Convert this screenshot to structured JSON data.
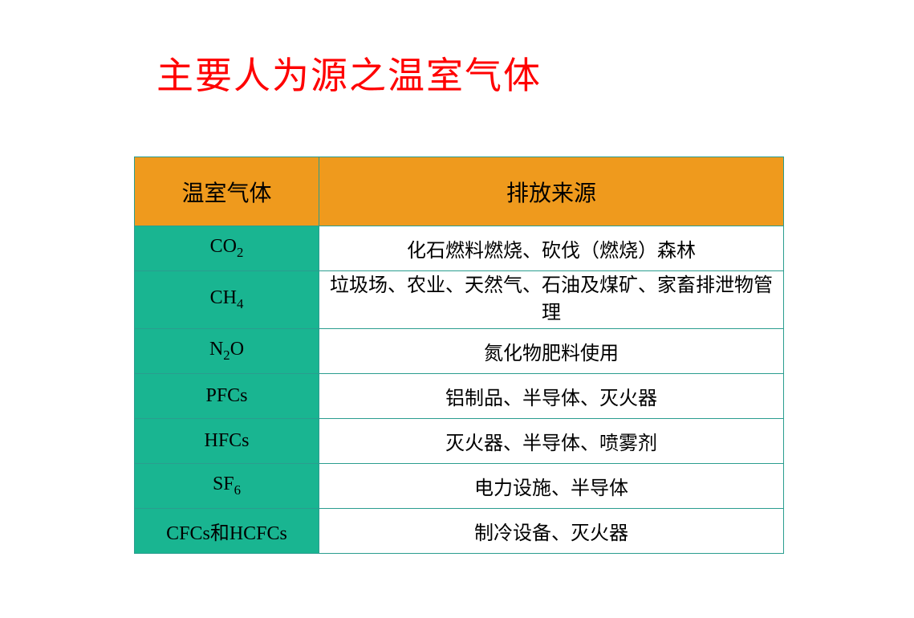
{
  "title": "主要人为源之温室气体",
  "table": {
    "header_bg_color": "#ef9a1d",
    "gas_cell_bg_color": "#19b591",
    "source_cell_bg_color": "#ffffff",
    "border_color": "#2a9d8f",
    "title_color": "#ff0000",
    "columns": [
      "温室气体",
      "排放来源"
    ],
    "rows": [
      {
        "gas_html": "CO<sub>2</sub>",
        "source": "化石燃料燃烧、砍伐（燃烧）森林"
      },
      {
        "gas_html": "CH<sub>4</sub>",
        "source": "垃圾场、农业、天然气、石油及煤矿、家畜排泄物管理",
        "tall": true
      },
      {
        "gas_html": "N<sub>2</sub>O",
        "source": "氮化物肥料使用"
      },
      {
        "gas_html": "PFCs",
        "source": "铝制品、半导体、灭火器"
      },
      {
        "gas_html": "HFCs",
        "source": "灭火器、半导体、喷雾剂"
      },
      {
        "gas_html": "SF<sub>6</sub>",
        "source": "电力设施、半导体"
      },
      {
        "gas_html": "CFCs和HCFCs",
        "source": "制冷设备、灭火器"
      }
    ]
  }
}
